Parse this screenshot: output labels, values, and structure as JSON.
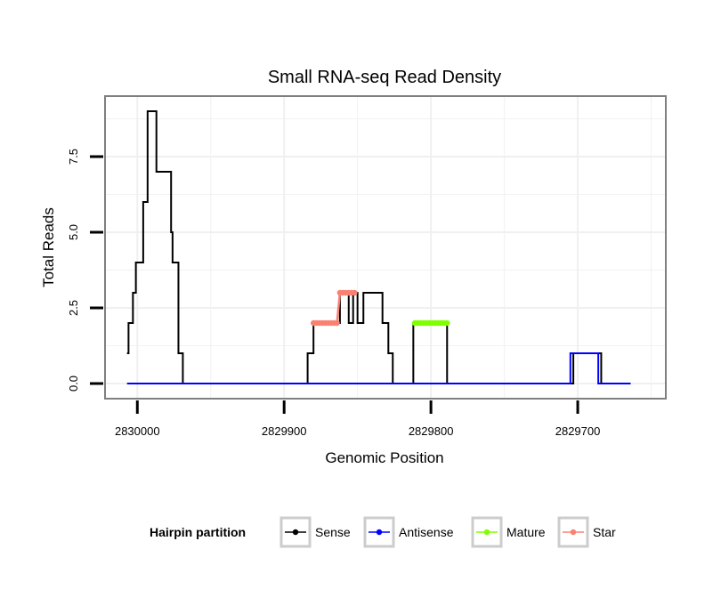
{
  "chart_data": {
    "type": "line",
    "title": "Small RNA-seq Read Density",
    "xlabel": "Genomic Position",
    "ylabel": "Total Reads",
    "x_reversed": true,
    "xlim": [
      2830022,
      2829640
    ],
    "ylim": [
      -0.5,
      9.5
    ],
    "x_ticks": [
      2830000,
      2829900,
      2829800,
      2829700
    ],
    "x_tick_labels": [
      "2830000",
      "2829900",
      "2829800",
      "2829700"
    ],
    "y_ticks": [
      0,
      2.5,
      5,
      7.5
    ],
    "y_tick_labels": [
      "0.0",
      "2.5",
      "5.0",
      "7.5"
    ],
    "grid": true,
    "legend": {
      "title": "Hairpin partition",
      "position": "bottom",
      "items": [
        {
          "name": "Sense",
          "color": "#000000"
        },
        {
          "name": "Antisense",
          "color": "#0000ff"
        },
        {
          "name": "Mature",
          "color": "#7fff00"
        },
        {
          "name": "Star",
          "color": "#fa8072"
        }
      ]
    },
    "series": [
      {
        "name": "Sense",
        "color": "#000000",
        "marker": false,
        "points": [
          [
            2830007,
            1
          ],
          [
            2830006,
            1
          ],
          [
            2830006,
            2
          ],
          [
            2830003,
            2
          ],
          [
            2830003,
            3
          ],
          [
            2830001,
            3
          ],
          [
            2830001,
            4
          ],
          [
            2829996,
            4
          ],
          [
            2829996,
            6
          ],
          [
            2829993,
            6
          ],
          [
            2829993,
            9
          ],
          [
            2829987,
            9
          ],
          [
            2829987,
            7
          ],
          [
            2829977,
            7
          ],
          [
            2829977,
            5
          ],
          [
            2829976,
            5
          ],
          [
            2829976,
            4
          ],
          [
            2829972,
            4
          ],
          [
            2829972,
            1
          ],
          [
            2829969,
            1
          ],
          [
            2829969,
            0
          ],
          [
            2829884,
            0
          ],
          [
            2829884,
            1
          ],
          [
            2829880,
            1
          ],
          [
            2829880,
            2
          ],
          [
            2829862,
            2
          ],
          [
            2829862,
            3
          ],
          [
            2829856,
            3
          ],
          [
            2829856,
            2
          ],
          [
            2829853,
            2
          ],
          [
            2829853,
            3
          ],
          [
            2829850,
            3
          ],
          [
            2829850,
            2
          ],
          [
            2829846,
            2
          ],
          [
            2829846,
            3
          ],
          [
            2829833,
            3
          ],
          [
            2829833,
            2
          ],
          [
            2829829,
            2
          ],
          [
            2829829,
            1
          ],
          [
            2829826,
            1
          ],
          [
            2829826,
            0
          ],
          [
            2829812,
            0
          ],
          [
            2829812,
            2
          ],
          [
            2829789,
            2
          ],
          [
            2829789,
            0
          ],
          [
            2829703,
            0
          ],
          [
            2829703,
            1
          ],
          [
            2829684,
            1
          ],
          [
            2829684,
            0
          ],
          [
            2829664,
            0
          ]
        ]
      },
      {
        "name": "Antisense",
        "color": "#0000ff",
        "marker": false,
        "points": [
          [
            2830007,
            0
          ],
          [
            2829705,
            0
          ],
          [
            2829705,
            1
          ],
          [
            2829686,
            1
          ],
          [
            2829686,
            0
          ],
          [
            2829664,
            0
          ]
        ]
      },
      {
        "name": "Mature",
        "color": "#7fff00",
        "marker": true,
        "points": [
          [
            2829811,
            2
          ],
          [
            2829809,
            2
          ],
          [
            2829807,
            2
          ],
          [
            2829805,
            2
          ],
          [
            2829803,
            2
          ],
          [
            2829801,
            2
          ],
          [
            2829799,
            2
          ],
          [
            2829797,
            2
          ],
          [
            2829795,
            2
          ],
          [
            2829793,
            2
          ],
          [
            2829791,
            2
          ],
          [
            2829789,
            2
          ]
        ]
      },
      {
        "name": "Star",
        "color": "#fa8072",
        "marker": true,
        "points": [
          [
            2829880,
            2
          ],
          [
            2829878,
            2
          ],
          [
            2829876,
            2
          ],
          [
            2829874,
            2
          ],
          [
            2829872,
            2
          ],
          [
            2829870,
            2
          ],
          [
            2829868,
            2
          ],
          [
            2829866,
            2
          ],
          [
            2829864,
            2
          ],
          [
            2829862,
            3
          ],
          [
            2829860,
            3
          ],
          [
            2829858,
            3
          ],
          [
            2829856,
            3
          ],
          [
            2829854,
            3
          ],
          [
            2829852,
            3
          ]
        ]
      }
    ]
  }
}
